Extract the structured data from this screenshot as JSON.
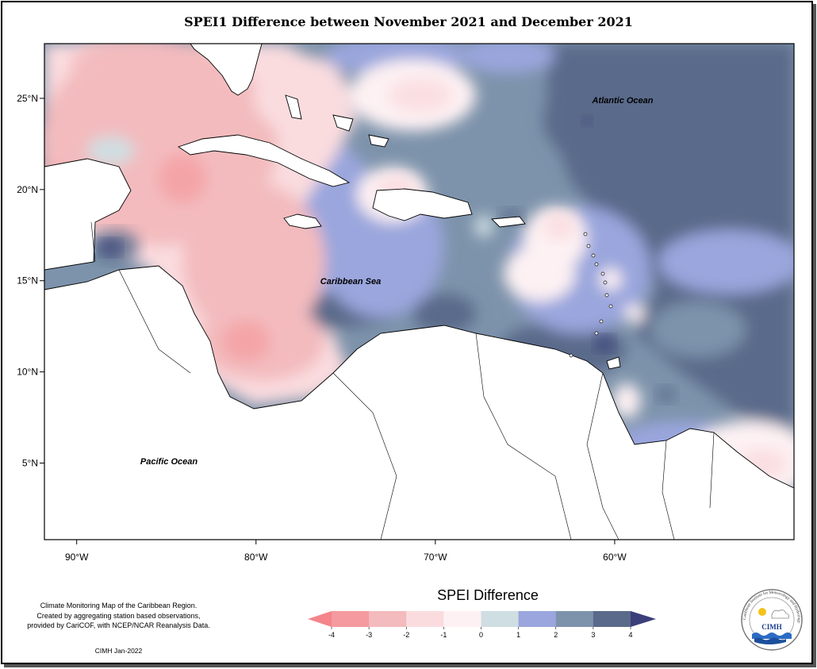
{
  "map": {
    "title": "SPEI1 Difference between November 2021 and December 2021",
    "x_ticks": [
      {
        "value": -90,
        "label": "90°W"
      },
      {
        "value": -80,
        "label": "80°W"
      },
      {
        "value": -70,
        "label": "70°W"
      },
      {
        "value": -60,
        "label": "60°W"
      }
    ],
    "y_ticks": [
      {
        "value": 25,
        "label": "25°N"
      },
      {
        "value": 20,
        "label": "20°N"
      },
      {
        "value": 15,
        "label": "15°N"
      },
      {
        "value": 10,
        "label": "10°N"
      },
      {
        "value": 5,
        "label": "5°N"
      }
    ],
    "extent": {
      "lon_min": -91.8,
      "lon_max": -50.0,
      "lat_min": 0.8,
      "lat_max": 28.0
    },
    "labels": {
      "atlantic": "Atlantic Ocean",
      "caribbean": "Caribbean Sea",
      "pacific": "Pacific Ocean"
    }
  },
  "legend": {
    "title": "SPEI Difference",
    "ticks": [
      "-4",
      "-3",
      "-2",
      "-1",
      "0",
      "1",
      "2",
      "3",
      "4"
    ],
    "colors": [
      "#f59a9e",
      "#f3bbbe",
      "#fadcdf",
      "#fdf1f3",
      "#cfdee2",
      "#9aa6dd",
      "#7d93ab",
      "#5a6a8a"
    ],
    "end_low": "#f4858b",
    "end_high": "#3b3f7a"
  },
  "credits": {
    "line1": "Climate Monitoring Map of the Caribbean Region.",
    "line2": "Created by aggregating station based observations,",
    "line3": "provided by CariCOF, with NCEP/NCAR Reanalysis Data.",
    "date": "CIMH Jan-2022"
  },
  "logo": {
    "text": "CIMH",
    "ring_text": "Caribbean Institute for Meteorology and Hydrology"
  },
  "colors": {
    "m3": "#f4a0a3",
    "m2": "#f3bbbe",
    "m1": "#fadcdf",
    "m0": "#fdf1f3",
    "p0": "#cfdee2",
    "p1": "#9aa6dd",
    "p2": "#7d93ab",
    "p3": "#5a6a8a",
    "p4": "#3b3f7a",
    "land": "#ffffff"
  }
}
